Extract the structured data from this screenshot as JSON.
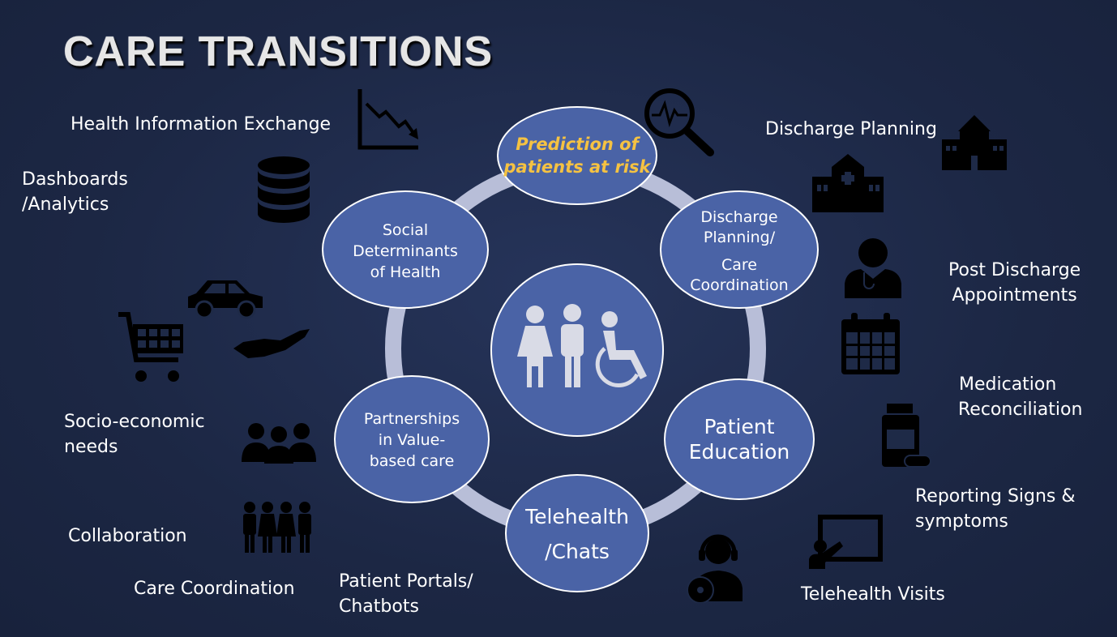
{
  "title": "CARE TRANSITIONS",
  "nodes": {
    "prediction": "Prediction of patients at risk",
    "discharge": [
      "Discharge",
      "Planning/",
      "Care",
      "Coordination"
    ],
    "education": [
      "Patient",
      "Education"
    ],
    "telehealth": [
      "Telehealth",
      "/Chats"
    ],
    "partnerships": [
      "Partnerships",
      "in Value-",
      "based care"
    ],
    "social": [
      "Social",
      "Determinants",
      "of Health"
    ]
  },
  "left_labels": {
    "hie": "Health Information Exchange",
    "dashboards": [
      "Dashboards",
      "/Analytics"
    ],
    "socio": [
      "Socio-economic",
      "needs"
    ],
    "collaboration": "Collaboration",
    "care_coordination": "Care Coordination",
    "portals": [
      "Patient Portals/",
      "Chatbots"
    ]
  },
  "right_labels": {
    "discharge_planning": "Discharge Planning",
    "post_discharge": [
      "Post Discharge",
      "Appointments"
    ],
    "med_rec": [
      "Medication",
      "Reconciliation"
    ],
    "signs": [
      "Reporting Signs &",
      "symptoms"
    ],
    "telehealth_visits": "Telehealth Visits"
  },
  "colors": {
    "node_fill": "#4a63a6",
    "node_border": "#ffffff",
    "ring": "#b8bed8",
    "highlight_text": "#f5c242"
  }
}
